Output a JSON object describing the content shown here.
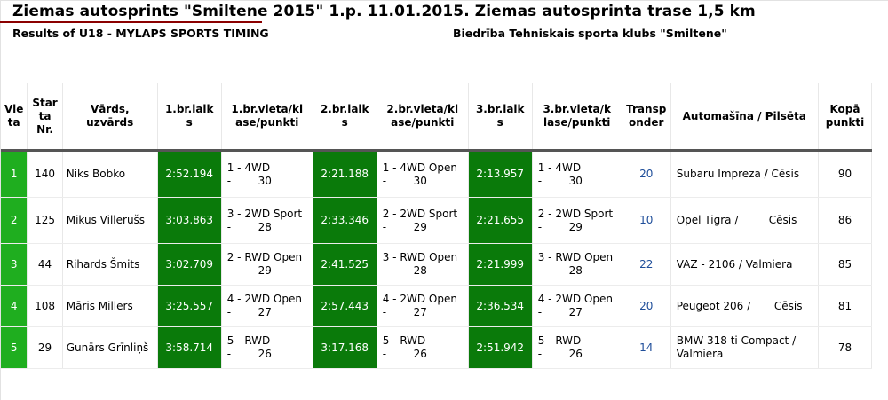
{
  "header": {
    "title": "Ziemas autosprints \"Smiltene 2015\" 1.p. 11.01.2015. Ziemas autosprinta trase 1,5 km",
    "subtitle_left": "Results of U18 - MYLAPS SPORTS TIMING",
    "subtitle_right": "Biedrība Tehniskais sporta klubs \"Smiltene\""
  },
  "columns": [
    "Vie ta",
    "Star ta Nr.",
    "Vārds, uzvārds",
    "1.br.laik s",
    "1.br.vieta/kl ase/punkti",
    "2.br.laik s",
    "2.br.vieta/kl ase/punkti",
    "3.br.laik s",
    "3.br.vieta/k lase/punkti",
    "Transp onder",
    "Automašīna / Pilsēta",
    "Kopā punkti"
  ],
  "rows": [
    {
      "place": "1",
      "start": "140",
      "name": "Niks Bobko",
      "t1": "2:52.194",
      "r1a": "1 - 4WD",
      "r1b": "-        30",
      "t2": "2:21.188",
      "r2a": "1 - 4WD Open",
      "r2b": "-        30",
      "t3": "2:13.957",
      "r3a": "1 - 4WD",
      "r3b": "-        30",
      "transponder": "20",
      "car": "Subaru Impreza / Cēsis",
      "total": "90"
    },
    {
      "place": "2",
      "start": "125",
      "name": "Mikus Villerušs",
      "t1": "3:03.863",
      "r1a": "3 - 2WD Sport",
      "r1b": "-        28",
      "t2": "2:33.346",
      "r2a": "2 - 2WD Sport",
      "r2b": "-        29",
      "t3": "2:21.655",
      "r3a": "2 - 2WD Sport",
      "r3b": "-        29",
      "transponder": "10",
      "car": "Opel Tigra /         Cēsis",
      "total": "86"
    },
    {
      "place": "3",
      "start": "44",
      "name": "Rihards Šmits",
      "t1": "3:02.709",
      "r1a": "2 - RWD Open",
      "r1b": "-        29",
      "t2": "2:41.525",
      "r2a": "3 - RWD Open",
      "r2b": "-        28",
      "t3": "2:21.999",
      "r3a": "3 - RWD Open",
      "r3b": "-        28",
      "transponder": "22",
      "car": "VAZ - 2106 / Valmiera",
      "total": "85"
    },
    {
      "place": "4",
      "start": "108",
      "name": "Māris Millers",
      "t1": "3:25.557",
      "r1a": "4 - 2WD Open",
      "r1b": "-        27",
      "t2": "2:57.443",
      "r2a": "4 - 2WD Open",
      "r2b": "-        27",
      "t3": "2:36.534",
      "r3a": "4 - 2WD Open",
      "r3b": "-        27",
      "transponder": "20",
      "car": "Peugeot 206 /       Cēsis",
      "total": "81"
    },
    {
      "place": "5",
      "start": "29",
      "name": "Gunārs Grīnliņš",
      "t1": "3:58.714",
      "r1a": "5 - RWD",
      "r1b": "-        26",
      "t2": "3:17.168",
      "r2a": "5 - RWD",
      "r2b": "-        26",
      "t3": "2:51.942",
      "r3a": "5 - RWD",
      "r3b": "-        26",
      "transponder": "14",
      "car": "BMW 318 ti Compact / Valmiera",
      "total": "78"
    }
  ],
  "colors": {
    "place_green": "#1fae1f",
    "time_green": "#0a7a0a",
    "title_underline": "#8b0000",
    "transponder_blue": "#1f4e9a"
  }
}
